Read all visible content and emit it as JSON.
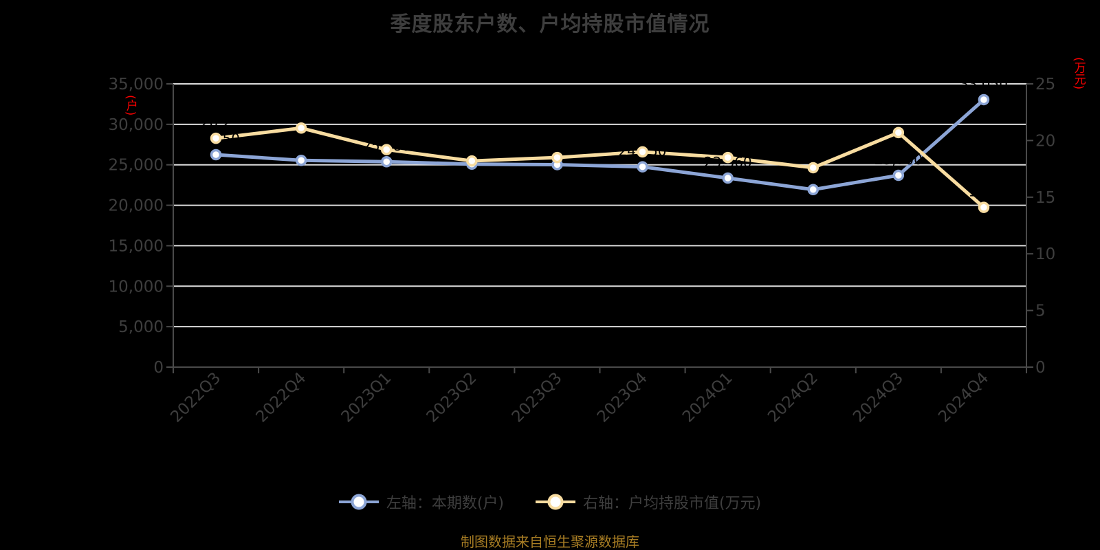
{
  "chart_data": {
    "type": "line",
    "title": "季度股东户数、户均持股市值情况",
    "source_note": "制图数据来自恒生聚源数据库",
    "categories": [
      "2022Q3",
      "2022Q4",
      "2023Q1",
      "2023Q2",
      "2023Q3",
      "2023Q4",
      "2024Q1",
      "2024Q2",
      "2024Q3",
      "2024Q4"
    ],
    "series": [
      {
        "name": "左轴：本期数(户)",
        "axis": "left",
        "color": "#8CA5D6",
        "values": [
          26250,
          25550,
          25380,
          25080,
          25020,
          24750,
          23360,
          21940,
          23700,
          33050
        ],
        "point_labels": [
          "26,250",
          "25,550",
          "25,380",
          "25,080",
          "25,020",
          "24,750",
          "23,360",
          "21,940",
          "23,700",
          "33,050"
        ]
      },
      {
        "name": "右轴：户均持股市值(万元)",
        "axis": "right",
        "color": "#F8DCA0",
        "values": [
          20.2,
          21.1,
          19.2,
          18.2,
          18.5,
          19.0,
          18.5,
          17.6,
          20.7,
          14.1
        ],
        "point_labels": [
          "20.2",
          "21.1",
          "19.2",
          "18.2",
          "18.5",
          "19.0",
          "18.5",
          "17.6",
          "20.7",
          "14.1"
        ]
      }
    ],
    "left_axis": {
      "label": "(户)",
      "min": 0,
      "max": 35000,
      "step": 5000
    },
    "right_axis": {
      "label": "(万元)",
      "min": 0,
      "max": 25,
      "step": 5
    },
    "grid": true,
    "legend_position": "bottom",
    "point_label_color": "#000000",
    "colors": {
      "background": "#000000",
      "text": "#3E3E3E",
      "axis_line": "#4A4A4A",
      "gridline": "#DCDCDC",
      "axis_unit_red": "#FF0000",
      "source_note": "#A97E24",
      "marker_fill": "#FFFFFF"
    }
  }
}
